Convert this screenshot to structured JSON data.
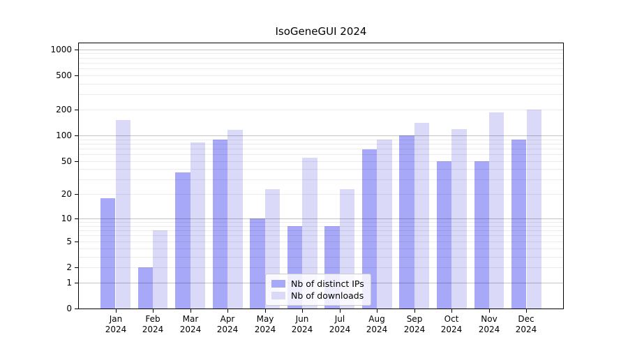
{
  "title": "IsoGeneGUI 2024",
  "chart_data": {
    "type": "bar",
    "title": "IsoGeneGUI 2024",
    "year": "2024",
    "months": [
      "Jan",
      "Feb",
      "Mar",
      "Apr",
      "May",
      "Jun",
      "Jul",
      "Aug",
      "Sep",
      "Oct",
      "Nov",
      "Dec"
    ],
    "categories": [
      "Jan 2024",
      "Feb 2024",
      "Mar 2024",
      "Apr 2024",
      "May 2024",
      "Jun 2024",
      "Jul 2024",
      "Aug 2024",
      "Sep 2024",
      "Oct 2024",
      "Nov 2024",
      "Dec 2024"
    ],
    "series": [
      {
        "name": "Nb of distinct IPs",
        "color": "#a8a8f8",
        "values": [
          18,
          2,
          37,
          89,
          10,
          8,
          8,
          69,
          100,
          50,
          50,
          89
        ]
      },
      {
        "name": "Nb of downloads",
        "color": "#dadaf8",
        "values": [
          150,
          7,
          83,
          117,
          23,
          55,
          23,
          89,
          141,
          119,
          186,
          200
        ]
      }
    ],
    "xlabel": "",
    "ylabel": "",
    "yscale": "log1p",
    "yticks": [
      0,
      1,
      2,
      5,
      10,
      20,
      50,
      100,
      200,
      500,
      1000
    ],
    "ylim": [
      0,
      1200
    ],
    "grid": "horizontal major and minor gridlines",
    "legend_position": "lower center inside plot"
  }
}
